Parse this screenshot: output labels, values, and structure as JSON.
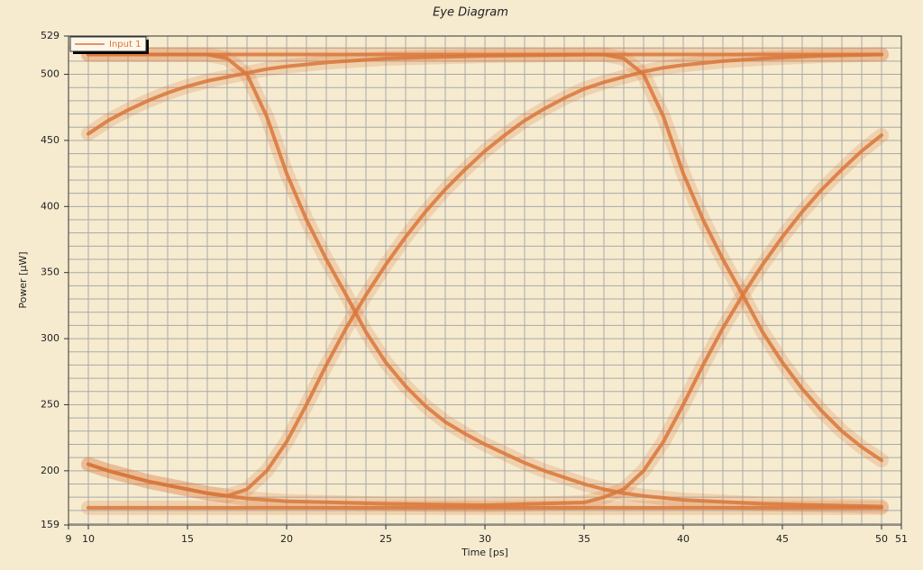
{
  "chart_data": {
    "type": "line",
    "title": "Eye Diagram",
    "x_label": "Time [ps]",
    "y_label": "Power [µW]",
    "xlim": [
      9,
      51
    ],
    "xticks": [
      9,
      10,
      15,
      20,
      25,
      30,
      35,
      40,
      45,
      50,
      51
    ],
    "ylim": [
      159,
      529
    ],
    "yticks": [
      159,
      200,
      250,
      300,
      350,
      400,
      450,
      500,
      529
    ],
    "grid": true,
    "minor_grid": {
      "x_step": 1,
      "y_step": 10
    },
    "legend": "upper left",
    "series": [
      {
        "name": "Input 1",
        "color": "#d9773a",
        "x": [
          10,
          50,
          null,
          10,
          50,
          null,
          10,
          11,
          12,
          13,
          14,
          15,
          16,
          17,
          18,
          19,
          20,
          21,
          22,
          23,
          24,
          25,
          26,
          27,
          28,
          29,
          30,
          31,
          32,
          33,
          34,
          35,
          36,
          37,
          38,
          39,
          40,
          42,
          44,
          47,
          50,
          null,
          10,
          16,
          17,
          18,
          19,
          20,
          21,
          22,
          23,
          24,
          25,
          26,
          27,
          28,
          29,
          30,
          31,
          32,
          33,
          34,
          35,
          36,
          37,
          38,
          40,
          44,
          50,
          null,
          10,
          11,
          12,
          13,
          14,
          15,
          16,
          17,
          18,
          19,
          20,
          22,
          25,
          30,
          36,
          37,
          38,
          39,
          40,
          41,
          42,
          43,
          44,
          45,
          46,
          47,
          48,
          49,
          50,
          null,
          10,
          11,
          12,
          13,
          14,
          15,
          16,
          17,
          18,
          20,
          25,
          30,
          35,
          36,
          37,
          38,
          39,
          40,
          41,
          42,
          43,
          44,
          45,
          46,
          47,
          48,
          49,
          50
        ],
        "values": [
          515,
          515,
          null,
          172,
          172,
          null,
          205,
          200,
          196,
          192,
          189,
          186,
          183,
          181,
          186,
          200,
          222,
          250,
          280,
          308,
          333,
          356,
          377,
          396,
          413,
          428,
          442,
          454,
          465,
          474,
          482,
          489,
          494,
          498,
          502,
          505,
          507,
          510,
          512,
          514,
          515,
          null,
          515,
          515,
          512,
          500,
          468,
          425,
          390,
          360,
          333,
          305,
          282,
          264,
          249,
          237,
          228,
          220,
          213,
          206,
          200,
          195,
          190,
          186,
          183,
          181,
          178,
          175,
          173,
          null,
          455,
          465,
          473,
          480,
          486,
          491,
          495,
          498,
          501,
          504,
          506,
          509,
          512,
          514,
          515,
          512,
          500,
          468,
          425,
          390,
          360,
          333,
          305,
          282,
          262,
          245,
          230,
          218,
          208,
          null,
          205,
          200,
          196,
          192,
          189,
          186,
          183,
          181,
          179,
          177,
          175,
          174,
          176,
          180,
          186,
          200,
          222,
          250,
          280,
          308,
          333,
          356,
          377,
          396,
          413,
          428,
          442,
          454
        ]
      }
    ]
  }
}
